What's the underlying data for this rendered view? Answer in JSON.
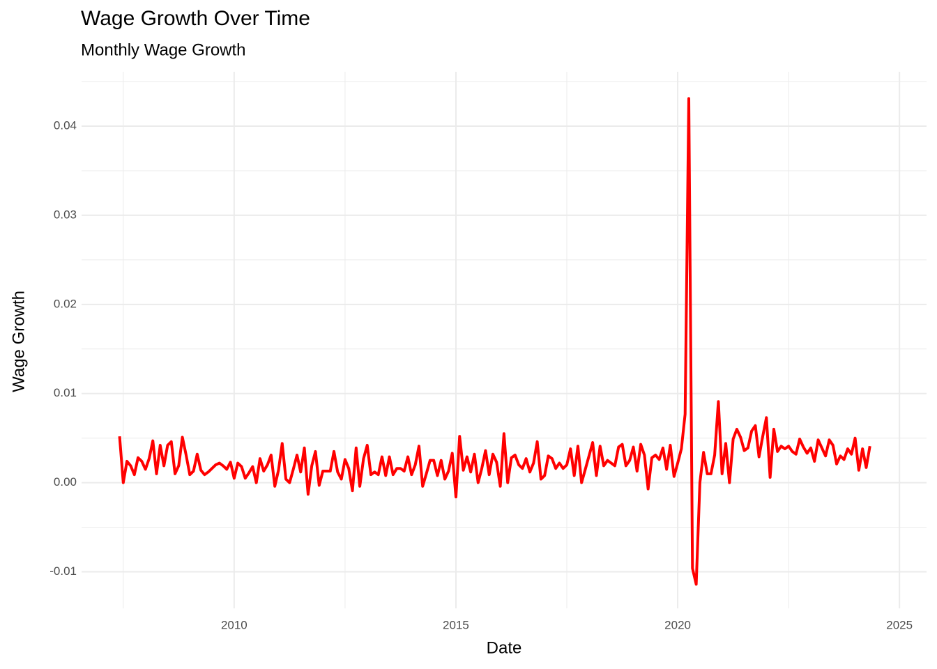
{
  "chart_data": {
    "type": "line",
    "title": "Wage Growth Over Time",
    "subtitle": "Monthly Wage Growth",
    "x_label": "Date",
    "y_label": "Wage Growth",
    "color": "#ff0000",
    "grid": true,
    "xlim": [
      2006.56,
      2025.61
    ],
    "ylim": [
      -0.0141,
      0.0461
    ],
    "xticks": [
      2010,
      2015,
      2020,
      2025
    ],
    "yticks": [
      -0.01,
      {
        "value": 0,
        "label": "0.00"
      },
      0.01,
      0.02,
      0.03,
      0.04
    ],
    "x_minor_breaks": [
      2007.5,
      2012.5,
      2017.5,
      2022.5
    ],
    "y_minor_breaks": [
      -0.005,
      0.005,
      0.015,
      0.025,
      0.035,
      0.045
    ],
    "x": [
      2007.417,
      2007.5,
      2007.583,
      2007.667,
      2007.75,
      2007.833,
      2007.917,
      2008,
      2008.083,
      2008.167,
      2008.25,
      2008.333,
      2008.417,
      2008.5,
      2008.583,
      2008.667,
      2008.75,
      2008.833,
      2008.917,
      2009,
      2009.083,
      2009.167,
      2009.25,
      2009.333,
      2009.417,
      2009.5,
      2009.583,
      2009.667,
      2009.75,
      2009.833,
      2009.917,
      2010,
      2010.083,
      2010.167,
      2010.25,
      2010.333,
      2010.417,
      2010.5,
      2010.583,
      2010.667,
      2010.75,
      2010.833,
      2010.917,
      2011,
      2011.083,
      2011.167,
      2011.25,
      2011.333,
      2011.417,
      2011.5,
      2011.583,
      2011.667,
      2011.75,
      2011.833,
      2011.917,
      2012,
      2012.083,
      2012.167,
      2012.25,
      2012.333,
      2012.417,
      2012.5,
      2012.583,
      2012.667,
      2012.75,
      2012.833,
      2012.917,
      2013,
      2013.083,
      2013.167,
      2013.25,
      2013.333,
      2013.417,
      2013.5,
      2013.583,
      2013.667,
      2013.75,
      2013.833,
      2013.917,
      2014,
      2014.083,
      2014.167,
      2014.25,
      2014.333,
      2014.417,
      2014.5,
      2014.583,
      2014.667,
      2014.75,
      2014.833,
      2014.917,
      2015,
      2015.083,
      2015.167,
      2015.25,
      2015.333,
      2015.417,
      2015.5,
      2015.583,
      2015.667,
      2015.75,
      2015.833,
      2015.917,
      2016,
      2016.083,
      2016.167,
      2016.25,
      2016.333,
      2016.417,
      2016.5,
      2016.583,
      2016.667,
      2016.75,
      2016.833,
      2016.917,
      2017,
      2017.083,
      2017.167,
      2017.25,
      2017.333,
      2017.417,
      2017.5,
      2017.583,
      2017.667,
      2017.75,
      2017.833,
      2017.917,
      2018,
      2018.083,
      2018.167,
      2018.25,
      2018.333,
      2018.417,
      2018.5,
      2018.583,
      2018.667,
      2018.75,
      2018.833,
      2018.917,
      2019,
      2019.083,
      2019.167,
      2019.25,
      2019.333,
      2019.417,
      2019.5,
      2019.583,
      2019.667,
      2019.75,
      2019.833,
      2019.917,
      2020,
      2020.083,
      2020.167,
      2020.25,
      2020.333,
      2020.417,
      2020.5,
      2020.583,
      2020.667,
      2020.75,
      2020.833,
      2020.917,
      2021,
      2021.083,
      2021.167,
      2021.25,
      2021.333,
      2021.417,
      2021.5,
      2021.583,
      2021.667,
      2021.75,
      2021.833,
      2021.917,
      2022,
      2022.083,
      2022.167,
      2022.25,
      2022.333,
      2022.417,
      2022.5,
      2022.583,
      2022.667,
      2022.75,
      2022.833,
      2022.917,
      2023,
      2023.083,
      2023.167,
      2023.25,
      2023.333,
      2023.417,
      2023.5,
      2023.583,
      2023.667,
      2023.75,
      2023.833,
      2023.917,
      2024,
      2024.083,
      2024.167,
      2024.25,
      2024.333
    ],
    "values": [
      0.0052,
      0.0,
      0.0024,
      0.0019,
      0.0009,
      0.0028,
      0.0024,
      0.0015,
      0.0027,
      0.0047,
      0.001,
      0.0042,
      0.0019,
      0.0042,
      0.0046,
      0.001,
      0.0019,
      0.0051,
      0.0031,
      0.0009,
      0.0013,
      0.0032,
      0.0014,
      0.0009,
      0.0012,
      0.0016,
      0.002,
      0.0022,
      0.0019,
      0.0015,
      0.0023,
      0.0005,
      0.0022,
      0.0018,
      0.0005,
      0.0011,
      0.0018,
      0.0,
      0.0027,
      0.0013,
      0.002,
      0.0031,
      -0.0004,
      0.0014,
      0.0044,
      0.0004,
      0.0,
      0.0015,
      0.0031,
      0.0012,
      0.0039,
      -0.0013,
      0.0019,
      0.0035,
      -0.0003,
      0.0013,
      0.0013,
      0.0013,
      0.0035,
      0.0012,
      0.0004,
      0.0026,
      0.0016,
      -0.0009,
      0.0039,
      -0.0004,
      0.0027,
      0.0042,
      0.0009,
      0.0012,
      0.0009,
      0.0029,
      0.0008,
      0.0029,
      0.0009,
      0.0016,
      0.0016,
      0.0013,
      0.0029,
      0.0009,
      0.002,
      0.0041,
      -0.0004,
      0.001,
      0.0025,
      0.0025,
      0.0008,
      0.0025,
      0.0004,
      0.0013,
      0.0033,
      -0.0016,
      0.0052,
      0.0014,
      0.0029,
      0.0012,
      0.0032,
      0.0,
      0.0016,
      0.0036,
      0.0009,
      0.0032,
      0.0023,
      -0.0004,
      0.0055,
      0.0,
      0.0028,
      0.0031,
      0.002,
      0.0016,
      0.0027,
      0.0012,
      0.0022,
      0.0046,
      0.0004,
      0.0008,
      0.003,
      0.0027,
      0.0016,
      0.0022,
      0.0016,
      0.002,
      0.0038,
      0.0008,
      0.0041,
      0.0,
      0.0015,
      0.003,
      0.0045,
      0.0008,
      0.0041,
      0.0019,
      0.0025,
      0.0022,
      0.0019,
      0.004,
      0.0043,
      0.0019,
      0.0025,
      0.004,
      0.0013,
      0.0043,
      0.0031,
      -0.0007,
      0.0028,
      0.0031,
      0.0026,
      0.0039,
      0.0015,
      0.0042,
      0.0007,
      0.0022,
      0.0038,
      0.0077,
      0.0431,
      -0.0096,
      -0.0114,
      0.0,
      0.0034,
      0.001,
      0.001,
      0.0031,
      0.0091,
      0.001,
      0.0044,
      0.0,
      0.0049,
      0.006,
      0.0051,
      0.0036,
      0.0039,
      0.0058,
      0.0064,
      0.0029,
      0.0052,
      0.0073,
      0.0006,
      0.006,
      0.0035,
      0.0041,
      0.0038,
      0.0041,
      0.0035,
      0.0032,
      0.0049,
      0.004,
      0.0033,
      0.0039,
      0.0024,
      0.0048,
      0.0039,
      0.003,
      0.0048,
      0.0042,
      0.0021,
      0.003,
      0.0026,
      0.0038,
      0.0032,
      0.005,
      0.0014,
      0.0038,
      0.0017,
      0.0041
    ]
  }
}
